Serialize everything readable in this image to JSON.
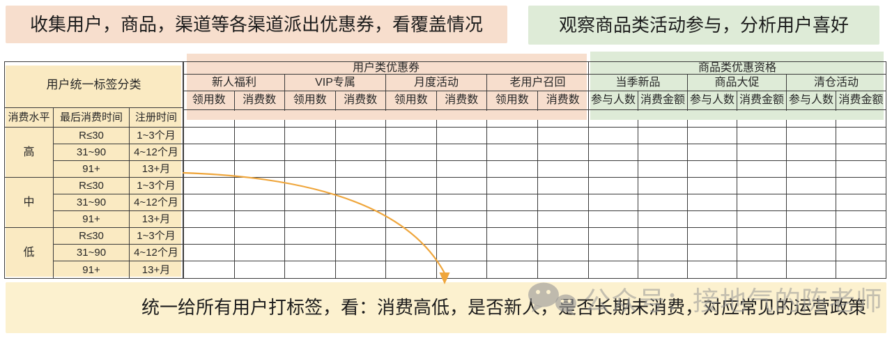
{
  "banners": {
    "left": "收集用户，商品，渠道等各渠道派出优惠券，看覆盖情况",
    "right": "观察商品类活动参与，分析用户喜好",
    "bottom": "统一给所有用户打标签，看：消费高低，是否新人，是否长期未消费，对应常见的运营政策"
  },
  "watermark": {
    "icon": "wechat-icon",
    "text": "公众号：接地气的陈老师"
  },
  "table": {
    "left": {
      "title": "用户统一标签分类",
      "columns": [
        "消费水平",
        "最后消费时间",
        "注册时间"
      ],
      "groups": [
        {
          "level": "高",
          "rows": [
            [
              "R≤30",
              "1~3个月"
            ],
            [
              "31~90",
              "4~12个月"
            ],
            [
              "91+",
              "13+月"
            ]
          ]
        },
        {
          "level": "中",
          "rows": [
            [
              "R≤30",
              "1~3个月"
            ],
            [
              "31~90",
              "4~12个月"
            ],
            [
              "91+",
              "13+月"
            ]
          ]
        },
        {
          "level": "低",
          "rows": [
            [
              "R≤30",
              "1~3个月"
            ],
            [
              "31~90",
              "4~12个月"
            ],
            [
              "91+",
              "13+月"
            ]
          ]
        }
      ]
    },
    "middle": {
      "title": "用户类优惠券",
      "groups": [
        "新人福利",
        "VIP专属",
        "月度活动",
        "老用户召回"
      ],
      "leaf_columns": [
        "领用数",
        "消费数"
      ]
    },
    "right": {
      "title": "商品类优惠资格",
      "groups": [
        "当季新品",
        "商品大促",
        "清仓活动"
      ],
      "leaf_columns": [
        "参与人数",
        "消费金额"
      ]
    }
  },
  "colors": {
    "peach": "#F7DECD",
    "green": "#DEEBD7",
    "table_yellow": "#FAEAC2",
    "banner_yellow": "#FCF1CF",
    "arrow": "#EFA63C",
    "border": "#3A3A3A",
    "watermark_gray": "#C8C8C8"
  }
}
